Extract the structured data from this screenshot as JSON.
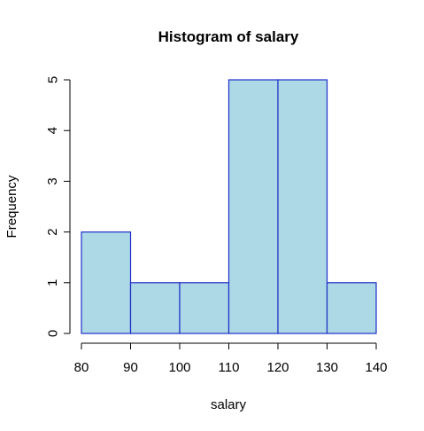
{
  "chart_data": {
    "type": "bar",
    "title": "Histogram of salary",
    "xlabel": "salary",
    "ylabel": "Frequency",
    "bins": [
      {
        "start": 80,
        "end": 90,
        "count": 2
      },
      {
        "start": 90,
        "end": 100,
        "count": 1
      },
      {
        "start": 100,
        "end": 110,
        "count": 1
      },
      {
        "start": 110,
        "end": 120,
        "count": 5
      },
      {
        "start": 120,
        "end": 130,
        "count": 5
      },
      {
        "start": 130,
        "end": 140,
        "count": 1
      }
    ],
    "xlim": [
      80,
      140
    ],
    "ylim": [
      0,
      5
    ],
    "x_ticks": [
      "80",
      "90",
      "100",
      "110",
      "120",
      "130",
      "140"
    ],
    "y_ticks": [
      "0",
      "1",
      "2",
      "3",
      "4",
      "5"
    ],
    "grid": false,
    "bar_fill": "#add8e6",
    "bar_stroke": "#1f2fc8"
  }
}
